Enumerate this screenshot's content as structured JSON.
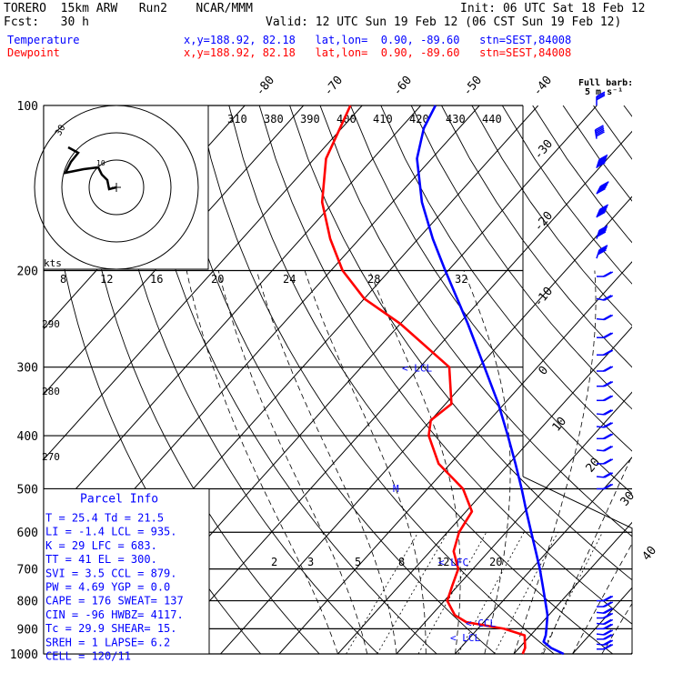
{
  "header": {
    "model": "TORERO  15km ARW   Run2    NCAR/MMM",
    "init": "Init: 06 UTC Sat 18 Feb 12",
    "fcst": "Fcst:   30 h",
    "valid": "Valid: 12 UTC Sun 19 Feb 12 (06 CST Sun 19 Feb 12)",
    "temp_label": "Temperature",
    "temp_loc": "x,y=188.92, 82.18   lat,lon=  0.90, -89.60   stn=SEST,84008",
    "dew_label": "Dewpoint",
    "dew_loc": "x,y=188.92, 82.18   lat,lon=  0.90, -89.60   stn=SEST,84008",
    "full_barb": "Full barb:",
    "full_barb_unit": "5 m s⁻¹"
  },
  "colors": {
    "temperature": "#0000ff",
    "dewpoint": "#ff0000",
    "grid": "#000000"
  },
  "chart_data": {
    "type": "line",
    "title": "",
    "yscale": "log-pressure",
    "pressure_levels": [
      "100",
      "200",
      "300",
      "400",
      "500",
      "600",
      "700",
      "800",
      "900",
      "1000"
    ],
    "temp_top_labels": [
      "-80",
      "-70",
      "-60",
      "-50",
      "-40"
    ],
    "temp_side_labels": [
      "-30",
      "-20",
      "-10",
      "0",
      "10",
      "20",
      "30",
      "40"
    ],
    "theta_labels": [
      "310",
      "380",
      "390",
      "400",
      "410",
      "420",
      "430",
      "440"
    ],
    "mixing_ratio_labels": [
      "2",
      "3",
      "5",
      "8",
      "12",
      "20"
    ],
    "hodograph": {
      "units": "kts",
      "ring_labels": [
        "8",
        "12",
        "16",
        "20",
        "24",
        "28",
        "32"
      ],
      "ring_label_30": "30",
      "ring_label_10": "10"
    },
    "theta_e_left_labels": [
      "290",
      "280",
      "270"
    ],
    "annotations": {
      "lcl": "< LCL",
      "ccl": "< CCL",
      "lfc": "< LFC",
      "el": "<-EL",
      "m": "M"
    },
    "series": [
      {
        "name": "Temperature",
        "points": [
          [
            1000,
            28.5
          ],
          [
            975,
            25.4
          ],
          [
            950,
            23.2
          ],
          [
            925,
            22.6
          ],
          [
            900,
            21.7
          ],
          [
            850,
            19.8
          ],
          [
            800,
            17.2
          ],
          [
            750,
            14.4
          ],
          [
            700,
            11.4
          ],
          [
            650,
            8.0
          ],
          [
            600,
            4.3
          ],
          [
            550,
            0.3
          ],
          [
            500,
            -4.0
          ],
          [
            450,
            -8.9
          ],
          [
            400,
            -14.5
          ],
          [
            350,
            -21.0
          ],
          [
            300,
            -29.0
          ],
          [
            250,
            -38.5
          ],
          [
            200,
            -50.5
          ],
          [
            175,
            -57.5
          ],
          [
            150,
            -65.0
          ],
          [
            125,
            -72.5
          ],
          [
            110,
            -76.0
          ],
          [
            100,
            -77.5
          ]
        ]
      },
      {
        "name": "Dewpoint",
        "points": [
          [
            1000,
            21.5
          ],
          [
            975,
            21.0
          ],
          [
            950,
            20.0
          ],
          [
            925,
            19.0
          ],
          [
            900,
            14.5
          ],
          [
            875,
            7.0
          ],
          [
            850,
            4.0
          ],
          [
            800,
            0.5
          ],
          [
            750,
            -1.0
          ],
          [
            700,
            -2.5
          ],
          [
            650,
            -6.0
          ],
          [
            600,
            -8.0
          ],
          [
            550,
            -9.0
          ],
          [
            500,
            -14.0
          ],
          [
            450,
            -22.0
          ],
          [
            400,
            -28.0
          ],
          [
            375,
            -30.0
          ],
          [
            350,
            -29.0
          ],
          [
            300,
            -35.0
          ],
          [
            250,
            -50.0
          ],
          [
            225,
            -60.0
          ],
          [
            200,
            -68.0
          ],
          [
            175,
            -75.0
          ],
          [
            150,
            -82.0
          ],
          [
            125,
            -88.0
          ],
          [
            100,
            -92.0
          ]
        ]
      }
    ],
    "wind_barbs": [
      {
        "p": 100,
        "dir": 0,
        "spd": 15
      },
      {
        "p": 115,
        "dir": 350,
        "spd": 25
      },
      {
        "p": 130,
        "dir": 20,
        "spd": 30
      },
      {
        "p": 145,
        "dir": 30,
        "spd": 30
      },
      {
        "p": 160,
        "dir": 25,
        "spd": 30
      },
      {
        "p": 175,
        "dir": 20,
        "spd": 25
      },
      {
        "p": 190,
        "dir": 20,
        "spd": 20
      },
      {
        "p": 205,
        "dir": 90,
        "spd": 10
      },
      {
        "p": 225,
        "dir": 100,
        "spd": 10
      },
      {
        "p": 245,
        "dir": 95,
        "spd": 10
      },
      {
        "p": 265,
        "dir": 90,
        "spd": 10
      },
      {
        "p": 285,
        "dir": 90,
        "spd": 10
      },
      {
        "p": 305,
        "dir": 90,
        "spd": 10
      },
      {
        "p": 325,
        "dir": 90,
        "spd": 10
      },
      {
        "p": 345,
        "dir": 90,
        "spd": 10
      },
      {
        "p": 365,
        "dir": 95,
        "spd": 10
      },
      {
        "p": 385,
        "dir": 95,
        "spd": 10
      },
      {
        "p": 405,
        "dir": 90,
        "spd": 10
      },
      {
        "p": 425,
        "dir": 95,
        "spd": 10
      },
      {
        "p": 450,
        "dir": 90,
        "spd": 10
      },
      {
        "p": 475,
        "dir": 95,
        "spd": 10
      },
      {
        "p": 500,
        "dir": 90,
        "spd": 10
      },
      {
        "p": 800,
        "dir": 90,
        "spd": 10
      },
      {
        "p": 820,
        "dir": 90,
        "spd": 10
      },
      {
        "p": 840,
        "dir": 95,
        "spd": 10
      },
      {
        "p": 860,
        "dir": 90,
        "spd": 10
      },
      {
        "p": 880,
        "dir": 95,
        "spd": 10
      },
      {
        "p": 900,
        "dir": 90,
        "spd": 10
      },
      {
        "p": 920,
        "dir": 95,
        "spd": 10
      },
      {
        "p": 940,
        "dir": 90,
        "spd": 10
      },
      {
        "p": 960,
        "dir": 95,
        "spd": 10
      },
      {
        "p": 980,
        "dir": 90,
        "spd": 10
      }
    ]
  },
  "parcel_info": {
    "title": "Parcel Info",
    "rows": [
      "T  =    25.4  Td =   21.5",
      "LI =    -1.4  LCL =  935.",
      "K  =      29  LFC =  683.",
      "TT =      41  EL  =  300.",
      "SVI =    3.5  CCL =  879.",
      "PW =    4.69  YGP =   0.0",
      "CAPE =   176  SWEAT=  137",
      "CIN =    -96  HWBZ= 4117.",
      "Tc =    29.9  SHEAR=  15.",
      "SREH =     1  LAPSE=  6.2",
      "CELL = 120/11"
    ]
  }
}
